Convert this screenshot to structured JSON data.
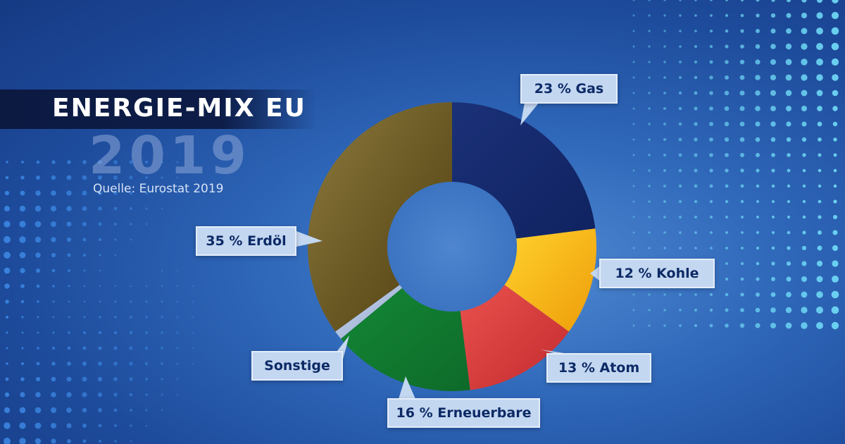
{
  "header": {
    "title": "ENERGIE-MIX EU",
    "year": "2019",
    "source": "Quelle: Eurostat 2019"
  },
  "chart_data": {
    "type": "pie",
    "categories": [
      "Gas",
      "Kohle",
      "Atom",
      "Erneuerbare",
      "Sonstige",
      "Erdöl"
    ],
    "values": [
      23,
      12,
      13,
      16,
      1,
      35
    ],
    "labels": [
      "23 % Gas",
      "12 % Kohle",
      "13 % Atom",
      "16 % Erneuerbare",
      "Sonstige",
      "35 % Erdöl"
    ],
    "colors": [
      "#16296b",
      "#f2ae10",
      "#d8383a",
      "#12752e",
      "#a9bde0",
      "#6f5a20"
    ],
    "title": "ENERGIE-MIX EU",
    "subtitle": "2019",
    "source": "Quelle: Eurostat 2019"
  }
}
